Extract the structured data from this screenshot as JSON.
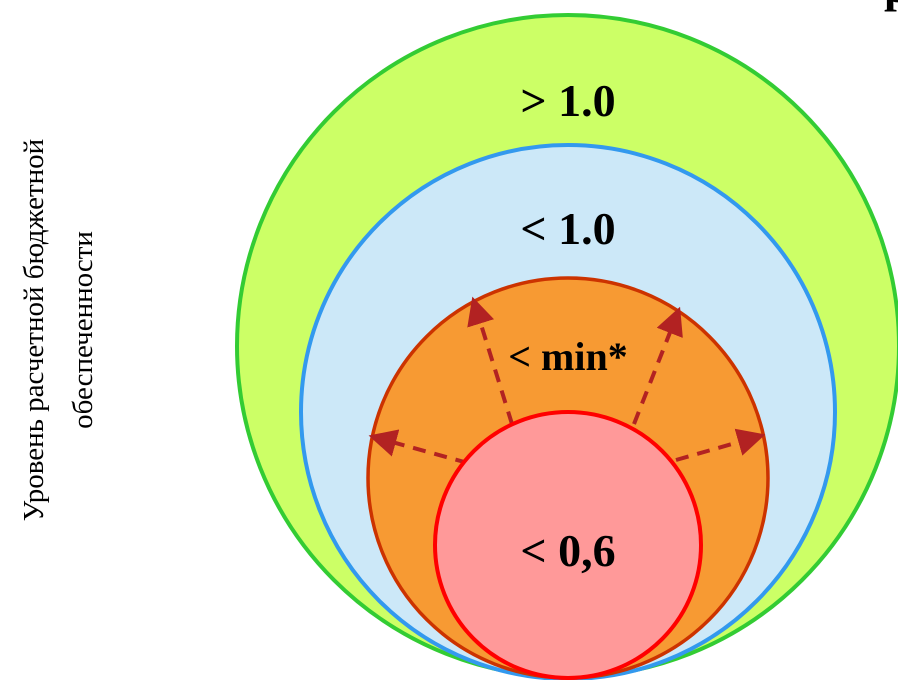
{
  "axis_label": {
    "line1": "Уровень расчетной бюджетной",
    "line2": "обеспеченности"
  },
  "levels": [
    {
      "key": "outer",
      "label": "> 1.0",
      "fill": "#ccff66",
      "stroke": "#33cc33"
    },
    {
      "key": "second",
      "label": "< 1.0",
      "fill": "#cce8f8",
      "stroke": "#3399ee"
    },
    {
      "key": "third",
      "label": "< min*",
      "fill": "#f79a33",
      "stroke": "#cc3300"
    },
    {
      "key": "inner",
      "label": "< 0,6",
      "fill": "#ff9999",
      "stroke": "#ff0000"
    }
  ],
  "arrow_color": "#b22222",
  "edge_glyph": "р"
}
